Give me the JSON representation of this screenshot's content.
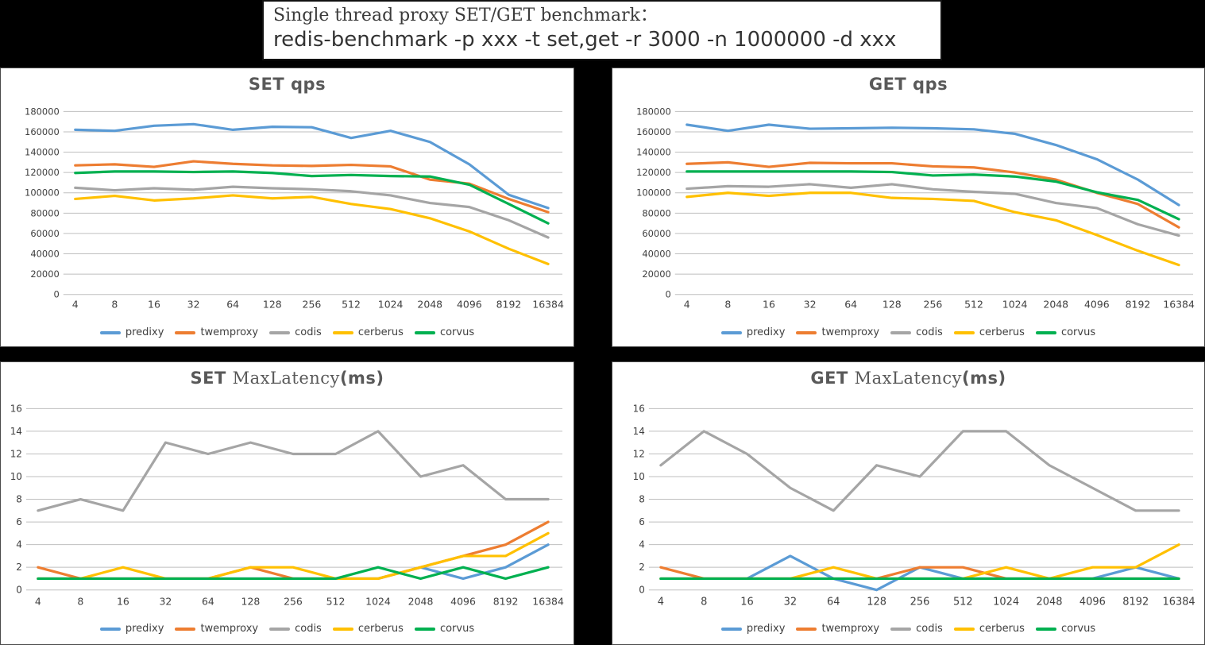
{
  "page": {
    "background": "#000000"
  },
  "header": {
    "title_line1": "Single thread proxy SET/GET benchmark：",
    "title_line2": "redis-benchmark -p xxx -t set,get -r 3000 -n 1000000 -d xxx"
  },
  "palette": {
    "predixy": "#5B9BD5",
    "twemproxy": "#ED7D31",
    "codis": "#A5A5A5",
    "cerberus": "#FFC000",
    "corvus": "#00B050",
    "gridline": "#BFBFBF",
    "axis_text": "#404040",
    "chart_title_text": "#595959"
  },
  "chart_data": [
    {
      "id": "set-qps",
      "type": "line",
      "title_segments": [
        {
          "text": "SET  qps",
          "style": "bold"
        }
      ],
      "categories": [
        "4",
        "8",
        "16",
        "32",
        "64",
        "128",
        "256",
        "512",
        "1024",
        "2048",
        "4096",
        "8192",
        "16384"
      ],
      "ylim": [
        0,
        180000
      ],
      "ystep": 20000,
      "grid": true,
      "legend_position": "bottom",
      "series": [
        {
          "name": "predixy",
          "color": "#5B9BD5",
          "values": [
            162000,
            161000,
            166000,
            167500,
            162000,
            165000,
            164500,
            154000,
            161000,
            150000,
            128000,
            98000,
            85000
          ]
        },
        {
          "name": "twemproxy",
          "color": "#ED7D31",
          "values": [
            127000,
            128000,
            125500,
            131000,
            128500,
            127000,
            126500,
            127500,
            126000,
            113000,
            109000,
            94000,
            81000
          ]
        },
        {
          "name": "codis",
          "color": "#A5A5A5",
          "values": [
            105000,
            102500,
            104500,
            103000,
            106000,
            104500,
            103500,
            101500,
            97500,
            90000,
            86000,
            73000,
            56000
          ]
        },
        {
          "name": "cerberus",
          "color": "#FFC000",
          "values": [
            94000,
            97000,
            92500,
            94500,
            97500,
            94500,
            96000,
            89000,
            84000,
            75000,
            62000,
            45000,
            30000
          ]
        },
        {
          "name": "corvus",
          "color": "#00B050",
          "values": [
            119500,
            121000,
            121000,
            120500,
            121000,
            119500,
            116500,
            117500,
            116500,
            116000,
            108000,
            89000,
            70000
          ]
        }
      ]
    },
    {
      "id": "get-qps",
      "type": "line",
      "title_segments": [
        {
          "text": "GET  qps",
          "style": "bold"
        }
      ],
      "categories": [
        "4",
        "8",
        "16",
        "32",
        "64",
        "128",
        "256",
        "512",
        "1024",
        "2048",
        "4096",
        "8192",
        "16384"
      ],
      "ylim": [
        0,
        180000
      ],
      "ystep": 20000,
      "grid": true,
      "legend_position": "bottom",
      "series": [
        {
          "name": "predixy",
          "color": "#5B9BD5",
          "values": [
            167000,
            161000,
            167000,
            163000,
            163500,
            164000,
            163500,
            162500,
            158000,
            147000,
            133000,
            113000,
            88000
          ]
        },
        {
          "name": "twemproxy",
          "color": "#ED7D31",
          "values": [
            128500,
            130000,
            125500,
            129500,
            129000,
            129000,
            126000,
            125000,
            120000,
            113000,
            100000,
            89000,
            66000
          ]
        },
        {
          "name": "codis",
          "color": "#A5A5A5",
          "values": [
            104000,
            106500,
            106000,
            108500,
            105000,
            108500,
            103500,
            101000,
            99000,
            90000,
            85000,
            69000,
            58000
          ]
        },
        {
          "name": "cerberus",
          "color": "#FFC000",
          "values": [
            96000,
            100000,
            97000,
            100000,
            100000,
            95000,
            94000,
            92000,
            81000,
            73000,
            58500,
            43000,
            29000
          ]
        },
        {
          "name": "corvus",
          "color": "#00B050",
          "values": [
            121000,
            121000,
            121000,
            121000,
            121000,
            120500,
            117000,
            118000,
            116000,
            111000,
            100500,
            93000,
            74000
          ]
        }
      ]
    },
    {
      "id": "set-maxlatency",
      "type": "line",
      "title_segments": [
        {
          "text": "SET ",
          "style": "bold"
        },
        {
          "text": "MaxLatency",
          "style": "serif"
        },
        {
          "text": "(ms)",
          "style": "bold"
        }
      ],
      "categories": [
        "4",
        "8",
        "16",
        "32",
        "64",
        "128",
        "256",
        "512",
        "1024",
        "2048",
        "4096",
        "8192",
        "16384"
      ],
      "ylim": [
        0,
        16
      ],
      "ystep": 2,
      "grid": true,
      "legend_position": "bottom",
      "series": [
        {
          "name": "predixy",
          "color": "#5B9BD5",
          "values": [
            1,
            1,
            1,
            1,
            1,
            1,
            1,
            1,
            1,
            2,
            1,
            2,
            4
          ]
        },
        {
          "name": "twemproxy",
          "color": "#ED7D31",
          "values": [
            2,
            1,
            1,
            1,
            1,
            2,
            1,
            1,
            1,
            2,
            3,
            4,
            6
          ]
        },
        {
          "name": "codis",
          "color": "#A5A5A5",
          "values": [
            7,
            8,
            7,
            13,
            12,
            13,
            12,
            12,
            14,
            10,
            11,
            8,
            8
          ]
        },
        {
          "name": "cerberus",
          "color": "#FFC000",
          "values": [
            1,
            1,
            2,
            1,
            1,
            2,
            2,
            1,
            1,
            2,
            3,
            3,
            5
          ]
        },
        {
          "name": "corvus",
          "color": "#00B050",
          "values": [
            1,
            1,
            1,
            1,
            1,
            1,
            1,
            1,
            2,
            1,
            2,
            1,
            2
          ]
        }
      ]
    },
    {
      "id": "get-maxlatency",
      "type": "line",
      "title_segments": [
        {
          "text": "GET ",
          "style": "bold"
        },
        {
          "text": "MaxLatency",
          "style": "serif"
        },
        {
          "text": "(ms)",
          "style": "bold"
        }
      ],
      "categories": [
        "4",
        "8",
        "16",
        "32",
        "64",
        "128",
        "256",
        "512",
        "1024",
        "2048",
        "4096",
        "8192",
        "16384"
      ],
      "ylim": [
        0,
        16
      ],
      "ystep": 2,
      "grid": true,
      "legend_position": "bottom",
      "series": [
        {
          "name": "predixy",
          "color": "#5B9BD5",
          "values": [
            1,
            1,
            1,
            3,
            1,
            0,
            2,
            1,
            1,
            1,
            1,
            2,
            1
          ]
        },
        {
          "name": "twemproxy",
          "color": "#ED7D31",
          "values": [
            2,
            1,
            1,
            1,
            1,
            1,
            2,
            2,
            1,
            1,
            1,
            1,
            1
          ]
        },
        {
          "name": "codis",
          "color": "#A5A5A5",
          "values": [
            11,
            14,
            12,
            9,
            7,
            11,
            10,
            14,
            14,
            11,
            9,
            7,
            7
          ]
        },
        {
          "name": "cerberus",
          "color": "#FFC000",
          "values": [
            1,
            1,
            1,
            1,
            2,
            1,
            1,
            1,
            2,
            1,
            2,
            2,
            4
          ]
        },
        {
          "name": "corvus",
          "color": "#00B050",
          "values": [
            1,
            1,
            1,
            1,
            1,
            1,
            1,
            1,
            1,
            1,
            1,
            1,
            1
          ]
        }
      ]
    }
  ]
}
